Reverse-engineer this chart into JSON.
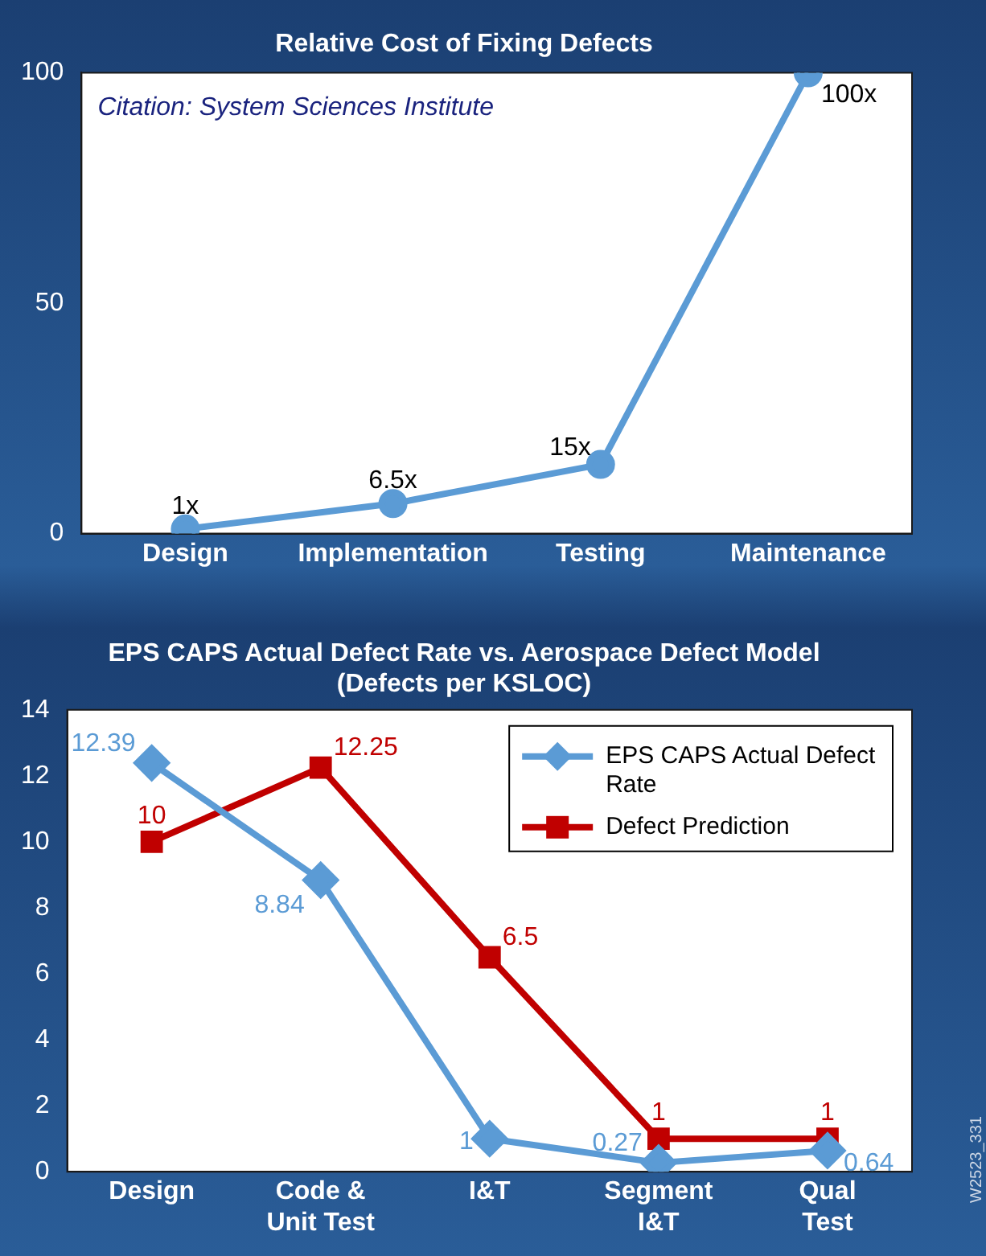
{
  "chart_data": [
    {
      "type": "line",
      "title": "Relative Cost of Fixing Defects",
      "categories": [
        "Design",
        "Implementation",
        "Testing",
        "Maintenance"
      ],
      "series": [
        {
          "color": "#5b9bd5",
          "values": [
            1,
            6.5,
            15,
            100
          ],
          "value_labels": [
            "1x",
            "6.5x",
            "15x",
            "100x"
          ],
          "marker": "circle"
        }
      ],
      "ylim": [
        0,
        100
      ],
      "yticks": [
        0,
        50,
        100
      ],
      "grid": false,
      "legend": false,
      "annotations": [
        "Citation: System Sciences Institute"
      ]
    },
    {
      "type": "line",
      "title": "EPS CAPS Actual Defect Rate vs. Aerospace Defect Model",
      "subtitle": "(Defects per KSLOC)",
      "categories": [
        "Design",
        "Code & Unit Test",
        "I&T",
        "Segment I&T",
        "Qual Test"
      ],
      "series": [
        {
          "name": "EPS CAPS Actual Defect Rate",
          "color": "#5b9bd5",
          "values": [
            12.39,
            8.84,
            1,
            0.27,
            0.64
          ],
          "marker": "diamond"
        },
        {
          "name": "Defect Prediction",
          "color": "#c00000",
          "values": [
            10,
            12.25,
            6.5,
            1,
            1
          ],
          "marker": "square"
        }
      ],
      "ylim": [
        0,
        14
      ],
      "yticks": [
        0,
        2,
        4,
        6,
        8,
        10,
        12,
        14
      ],
      "grid": false,
      "legend": "top right",
      "data_labels": true,
      "annotations": [
        "W2523_331"
      ]
    }
  ]
}
